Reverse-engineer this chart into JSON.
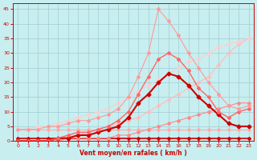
{
  "xlabel": "Vent moyen/en rafales ( km/h )",
  "bg_color": "#c8eef0",
  "grid_color": "#9ecdd4",
  "xlim": [
    -0.5,
    23.5
  ],
  "ylim": [
    0,
    47
  ],
  "xticks": [
    0,
    1,
    2,
    3,
    4,
    5,
    6,
    7,
    8,
    9,
    10,
    11,
    12,
    13,
    14,
    15,
    16,
    17,
    18,
    19,
    20,
    21,
    22,
    23
  ],
  "yticks": [
    0,
    5,
    10,
    15,
    20,
    25,
    30,
    35,
    40,
    45
  ],
  "lines": [
    {
      "x": [
        0,
        1,
        2,
        3,
        4,
        5,
        6,
        7,
        8,
        9,
        10,
        11,
        12,
        13,
        14,
        15,
        16,
        17,
        18,
        19,
        20,
        21,
        22,
        23
      ],
      "y": [
        1,
        1,
        1,
        1,
        1,
        1,
        1,
        1,
        1,
        1,
        1,
        1,
        1,
        1,
        1,
        1,
        1,
        1,
        1,
        1,
        1,
        1,
        1,
        1
      ],
      "color": "#cc0000",
      "lw": 1.2,
      "marker": "D",
      "ms": 2
    },
    {
      "x": [
        0,
        1,
        2,
        3,
        4,
        5,
        6,
        7,
        8,
        9,
        10,
        11,
        12,
        13,
        14,
        15,
        16,
        17,
        18,
        19,
        20,
        21,
        22,
        23
      ],
      "y": [
        4,
        4,
        4,
        4,
        4,
        4,
        4,
        4,
        4,
        4,
        4,
        4,
        4,
        4,
        4,
        4,
        4,
        4,
        4,
        4,
        4,
        4,
        4,
        4
      ],
      "color": "#ffaaaa",
      "lw": 0.8,
      "marker": "D",
      "ms": 2
    },
    {
      "x": [
        0,
        1,
        2,
        3,
        4,
        5,
        6,
        7,
        8,
        9,
        10,
        11,
        12,
        13,
        14,
        15,
        16,
        17,
        18,
        19,
        20,
        21,
        22,
        23
      ],
      "y": [
        0,
        0,
        0,
        0,
        0,
        1,
        1,
        1,
        1,
        1,
        2,
        2,
        3,
        4,
        5,
        6,
        7,
        8,
        9,
        10,
        11,
        12,
        13,
        13
      ],
      "color": "#ff8888",
      "lw": 0.8,
      "marker": "D",
      "ms": 2
    },
    {
      "x": [
        0,
        1,
        2,
        3,
        4,
        5,
        6,
        7,
        8,
        9,
        10,
        11,
        12,
        13,
        14,
        15,
        16,
        17,
        18,
        19,
        20,
        21,
        22,
        23
      ],
      "y": [
        0,
        0,
        0,
        0,
        1,
        1,
        2,
        3,
        4,
        5,
        6,
        7,
        8,
        10,
        12,
        14,
        16,
        18,
        20,
        22,
        26,
        30,
        33,
        35
      ],
      "color": "#ffbbbb",
      "lw": 0.8,
      "marker": "D",
      "ms": 2
    },
    {
      "x": [
        0,
        1,
        2,
        3,
        4,
        5,
        6,
        7,
        8,
        9,
        10,
        11,
        12,
        13,
        14,
        15,
        16,
        17,
        18,
        19,
        20,
        21,
        22,
        23
      ],
      "y": [
        4,
        4,
        5,
        5,
        6,
        7,
        8,
        9,
        10,
        11,
        13,
        15,
        17,
        19,
        21,
        23,
        25,
        27,
        28,
        30,
        32,
        33,
        34,
        35
      ],
      "color": "#ffcccc",
      "lw": 0.7,
      "marker": "D",
      "ms": 2
    },
    {
      "x": [
        0,
        1,
        2,
        3,
        4,
        5,
        6,
        7,
        8,
        9,
        10,
        11,
        12,
        13,
        14,
        15,
        16,
        17,
        18,
        19,
        20,
        21,
        22,
        23
      ],
      "y": [
        0,
        0,
        0,
        0,
        1,
        1,
        2,
        2,
        3,
        4,
        5,
        8,
        13,
        16,
        20,
        23,
        22,
        19,
        15,
        12,
        9,
        6,
        5,
        5
      ],
      "color": "#cc0000",
      "lw": 1.5,
      "marker": "D",
      "ms": 2.5
    },
    {
      "x": [
        0,
        1,
        2,
        3,
        4,
        5,
        6,
        7,
        8,
        9,
        10,
        11,
        12,
        13,
        14,
        15,
        16,
        17,
        18,
        19,
        20,
        21,
        22,
        23
      ],
      "y": [
        0,
        0,
        0,
        0,
        1,
        2,
        3,
        3,
        4,
        5,
        7,
        10,
        16,
        22,
        28,
        30,
        28,
        24,
        18,
        15,
        10,
        8,
        10,
        11
      ],
      "color": "#ff6666",
      "lw": 1.0,
      "marker": "D",
      "ms": 2
    },
    {
      "x": [
        0,
        1,
        2,
        3,
        4,
        5,
        6,
        7,
        8,
        9,
        10,
        11,
        12,
        13,
        14,
        15,
        16,
        17,
        18,
        19,
        20,
        21,
        22,
        23
      ],
      "y": [
        4,
        4,
        4,
        5,
        5,
        6,
        7,
        7,
        8,
        9,
        11,
        15,
        22,
        30,
        45,
        41,
        36,
        30,
        25,
        20,
        16,
        12,
        11,
        12
      ],
      "color": "#ff9999",
      "lw": 0.8,
      "marker": "D",
      "ms": 2
    }
  ]
}
